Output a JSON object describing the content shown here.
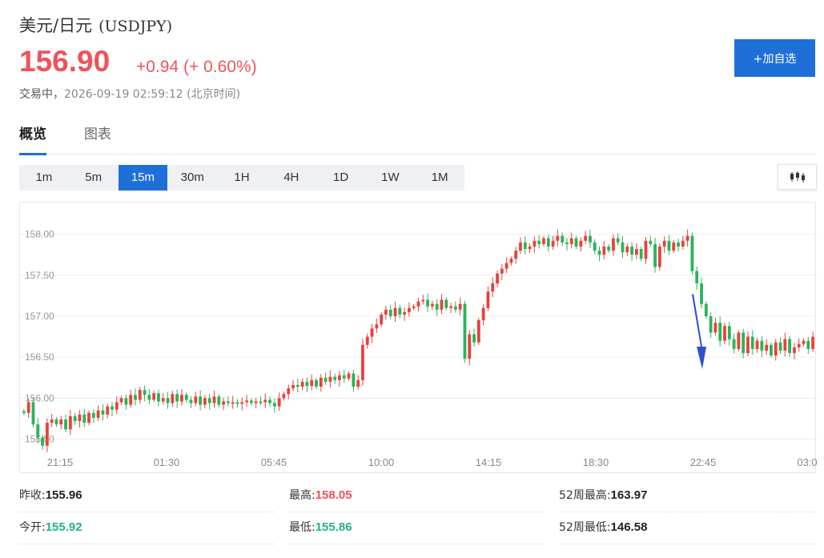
{
  "header": {
    "name": "美元/日元",
    "symbol": "(USDJPY)",
    "price": "156.90",
    "change": "+0.94 (+ 0.60%)",
    "status": "交易中，",
    "timestamp": "2026-09-19 02:59:12 (北京时间)",
    "watch_button": "+加自选"
  },
  "tabs": [
    {
      "label": "概览",
      "active": true
    },
    {
      "label": "图表",
      "active": false
    }
  ],
  "intervals": [
    "1m",
    "5m",
    "15m",
    "30m",
    "1H",
    "4H",
    "1D",
    "1W",
    "1M"
  ],
  "active_interval": "15m",
  "chart_type_icon": "candlestick-icon",
  "stats": {
    "prev_close_label": "昨收:",
    "prev_close": "155.96",
    "open_label": "今开:",
    "open": "155.92",
    "high_label": "最高:",
    "high": "158.05",
    "low_label": "最低:",
    "low": "155.86",
    "wk52_high_label": "52周最高:",
    "wk52_high": "163.97",
    "wk52_low_label": "52周最低:",
    "wk52_low": "146.58"
  },
  "colors": {
    "up": "#f0525a",
    "down": "#23b388",
    "candle_green": "#2bb35a",
    "candle_red": "#e8423a",
    "accent": "#1f6fd8",
    "arrow": "#2f4fd0"
  },
  "chart_data": {
    "type": "candlestick",
    "y_ticks": [
      "158.00",
      "157.50",
      "157.00",
      "156.50",
      "156.00",
      "155.50"
    ],
    "ylim": [
      155.3,
      158.25
    ],
    "x_ticks": [
      "21:15",
      "01:30",
      "05:45",
      "10:00",
      "14:15",
      "18:30",
      "22:45",
      "03:0"
    ],
    "grid": true,
    "annotation": "downward arrow",
    "series_close": [
      155.82,
      155.95,
      155.68,
      155.52,
      155.42,
      155.7,
      155.74,
      155.68,
      155.74,
      155.62,
      155.78,
      155.72,
      155.8,
      155.7,
      155.82,
      155.76,
      155.85,
      155.8,
      155.9,
      155.86,
      155.95,
      156.0,
      155.92,
      156.04,
      155.98,
      156.1,
      156.04,
      155.98,
      156.06,
      155.96,
      156.0,
      155.94,
      156.05,
      155.96,
      156.04,
      155.98,
      155.94,
      156.02,
      155.92,
      156.0,
      155.94,
      156.02,
      155.92,
      155.96,
      155.94,
      155.95,
      155.93,
      155.95,
      155.97,
      155.94,
      155.96,
      155.95,
      155.98,
      155.94,
      155.9,
      156.0,
      156.05,
      156.12,
      156.16,
      156.14,
      156.2,
      156.15,
      156.22,
      156.14,
      156.25,
      156.2,
      156.26,
      156.22,
      156.28,
      156.24,
      156.3,
      156.14,
      156.22,
      156.65,
      156.75,
      156.85,
      156.9,
      157.02,
      157.08,
      157.0,
      157.1,
      157.02,
      157.05,
      157.1,
      157.12,
      157.18,
      157.2,
      157.12,
      157.15,
      157.08,
      157.2,
      157.1,
      157.12,
      157.08,
      157.15,
      156.48,
      156.78,
      156.68,
      156.95,
      157.1,
      157.3,
      157.4,
      157.52,
      157.58,
      157.65,
      157.7,
      157.8,
      157.9,
      157.82,
      157.85,
      157.92,
      157.88,
      157.95,
      157.85,
      157.92,
      157.98,
      157.9,
      157.88,
      157.95,
      157.85,
      157.92,
      157.98,
      157.9,
      157.8,
      157.75,
      157.85,
      157.8,
      157.95,
      157.9,
      157.78,
      157.85,
      157.75,
      157.82,
      157.7,
      157.92,
      157.88,
      157.6,
      157.85,
      157.92,
      157.8,
      157.9,
      157.85,
      157.92,
      157.98,
      157.55,
      157.4,
      157.15,
      157.0,
      156.8,
      156.92,
      156.7,
      156.88,
      156.72,
      156.6,
      156.8,
      156.55,
      156.75,
      156.6,
      156.7,
      156.58,
      156.65,
      156.52,
      156.68,
      156.58,
      156.72,
      156.55,
      156.62,
      156.66,
      156.7,
      156.6,
      156.75
    ]
  }
}
